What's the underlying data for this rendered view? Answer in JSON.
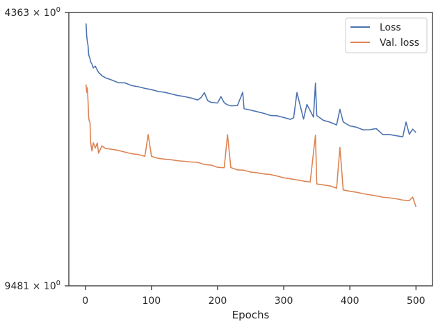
{
  "chart_data": {
    "type": "line",
    "title": "",
    "xlabel": "Epochs",
    "ylabel": "",
    "xlim": [
      -25,
      525
    ],
    "ylim": [
      0.9481,
      1.4363
    ],
    "x_ticks": [
      0,
      100,
      200,
      300,
      400,
      500
    ],
    "x_tick_labels": [
      "0",
      "100",
      "200",
      "300",
      "400",
      "500"
    ],
    "y_tick_labels": [
      "$4363 × 10^0$ top",
      "9481 × 10^0 bottom"
    ],
    "y_tick_text": [
      {
        "prefix": "4363",
        "times": "×",
        "base": "10",
        "exp": "0",
        "value": 1.4363
      },
      {
        "prefix": "9481",
        "times": "×",
        "base": "10",
        "exp": "0",
        "value": 0.9481
      }
    ],
    "grid": false,
    "legend_position": "top-right",
    "series": [
      {
        "name": "Loss",
        "color": "#4c72b0",
        "x": [
          1,
          2,
          3,
          4,
          5,
          6,
          7,
          8,
          10,
          12,
          15,
          18,
          20,
          25,
          30,
          40,
          50,
          60,
          70,
          80,
          90,
          100,
          110,
          120,
          130,
          140,
          150,
          160,
          170,
          175,
          180,
          185,
          190,
          200,
          205,
          210,
          215,
          220,
          230,
          238,
          240,
          250,
          260,
          270,
          280,
          290,
          300,
          310,
          315,
          320,
          330,
          335,
          345,
          348,
          350,
          360,
          370,
          380,
          385,
          390,
          400,
          410,
          420,
          430,
          440,
          450,
          460,
          470,
          480,
          485,
          490,
          495,
          500
        ],
        "values": [
          1.4128,
          1.3865,
          1.3735,
          1.3668,
          1.3474,
          1.3428,
          1.3389,
          1.3324,
          1.3278,
          1.3204,
          1.3238,
          1.3159,
          1.3112,
          1.3049,
          1.3008,
          1.2962,
          1.2908,
          1.2906,
          1.2853,
          1.2831,
          1.2799,
          1.2774,
          1.274,
          1.2722,
          1.2691,
          1.266,
          1.264,
          1.2612,
          1.2575,
          1.2622,
          1.2716,
          1.2563,
          1.253,
          1.2517,
          1.264,
          1.2523,
          1.2482,
          1.2464,
          1.2468,
          1.2723,
          1.241,
          1.2382,
          1.2352,
          1.2322,
          1.2282,
          1.2276,
          1.2244,
          1.221,
          1.224,
          1.2718,
          1.2215,
          1.249,
          1.2252,
          1.2901,
          1.228,
          1.2192,
          1.2158,
          1.2107,
          1.2398,
          1.2162,
          1.209,
          1.2065,
          1.2017,
          1.2019,
          1.204,
          1.193,
          1.1931,
          1.191,
          1.1891,
          1.216,
          1.1936,
          1.203,
          1.1969
        ]
      },
      {
        "name": "Val. loss",
        "color": "#dd8452",
        "x": [
          1,
          2,
          3,
          4,
          5,
          6,
          7,
          8,
          10,
          12,
          15,
          18,
          20,
          25,
          30,
          40,
          50,
          60,
          70,
          80,
          90,
          95,
          100,
          110,
          120,
          130,
          140,
          150,
          160,
          170,
          180,
          190,
          200,
          210,
          215,
          220,
          230,
          240,
          250,
          260,
          270,
          280,
          290,
          300,
          310,
          320,
          330,
          340,
          348,
          350,
          360,
          370,
          380,
          385,
          390,
          400,
          410,
          420,
          430,
          440,
          450,
          460,
          470,
          480,
          490,
          495,
          500
        ],
        "values": [
          1.2874,
          1.2722,
          1.281,
          1.2568,
          1.2237,
          1.2178,
          1.215,
          1.1783,
          1.1636,
          1.1781,
          1.169,
          1.1779,
          1.1598,
          1.1728,
          1.1684,
          1.1667,
          1.1647,
          1.1617,
          1.1588,
          1.1575,
          1.1543,
          1.1931,
          1.1542,
          1.1508,
          1.1493,
          1.1483,
          1.1465,
          1.1456,
          1.1444,
          1.1438,
          1.14,
          1.1391,
          1.1352,
          1.1345,
          1.193,
          1.1348,
          1.1307,
          1.1302,
          1.127,
          1.1258,
          1.1239,
          1.1228,
          1.1202,
          1.1172,
          1.1156,
          1.1137,
          1.1117,
          1.11,
          1.192,
          1.1068,
          1.1052,
          1.1036,
          1.0997,
          1.17,
          1.0968,
          1.0946,
          1.093,
          1.0905,
          1.0888,
          1.087,
          1.0848,
          1.0838,
          1.0822,
          1.0801,
          1.0792,
          1.0851,
          1.0692
        ]
      }
    ]
  }
}
